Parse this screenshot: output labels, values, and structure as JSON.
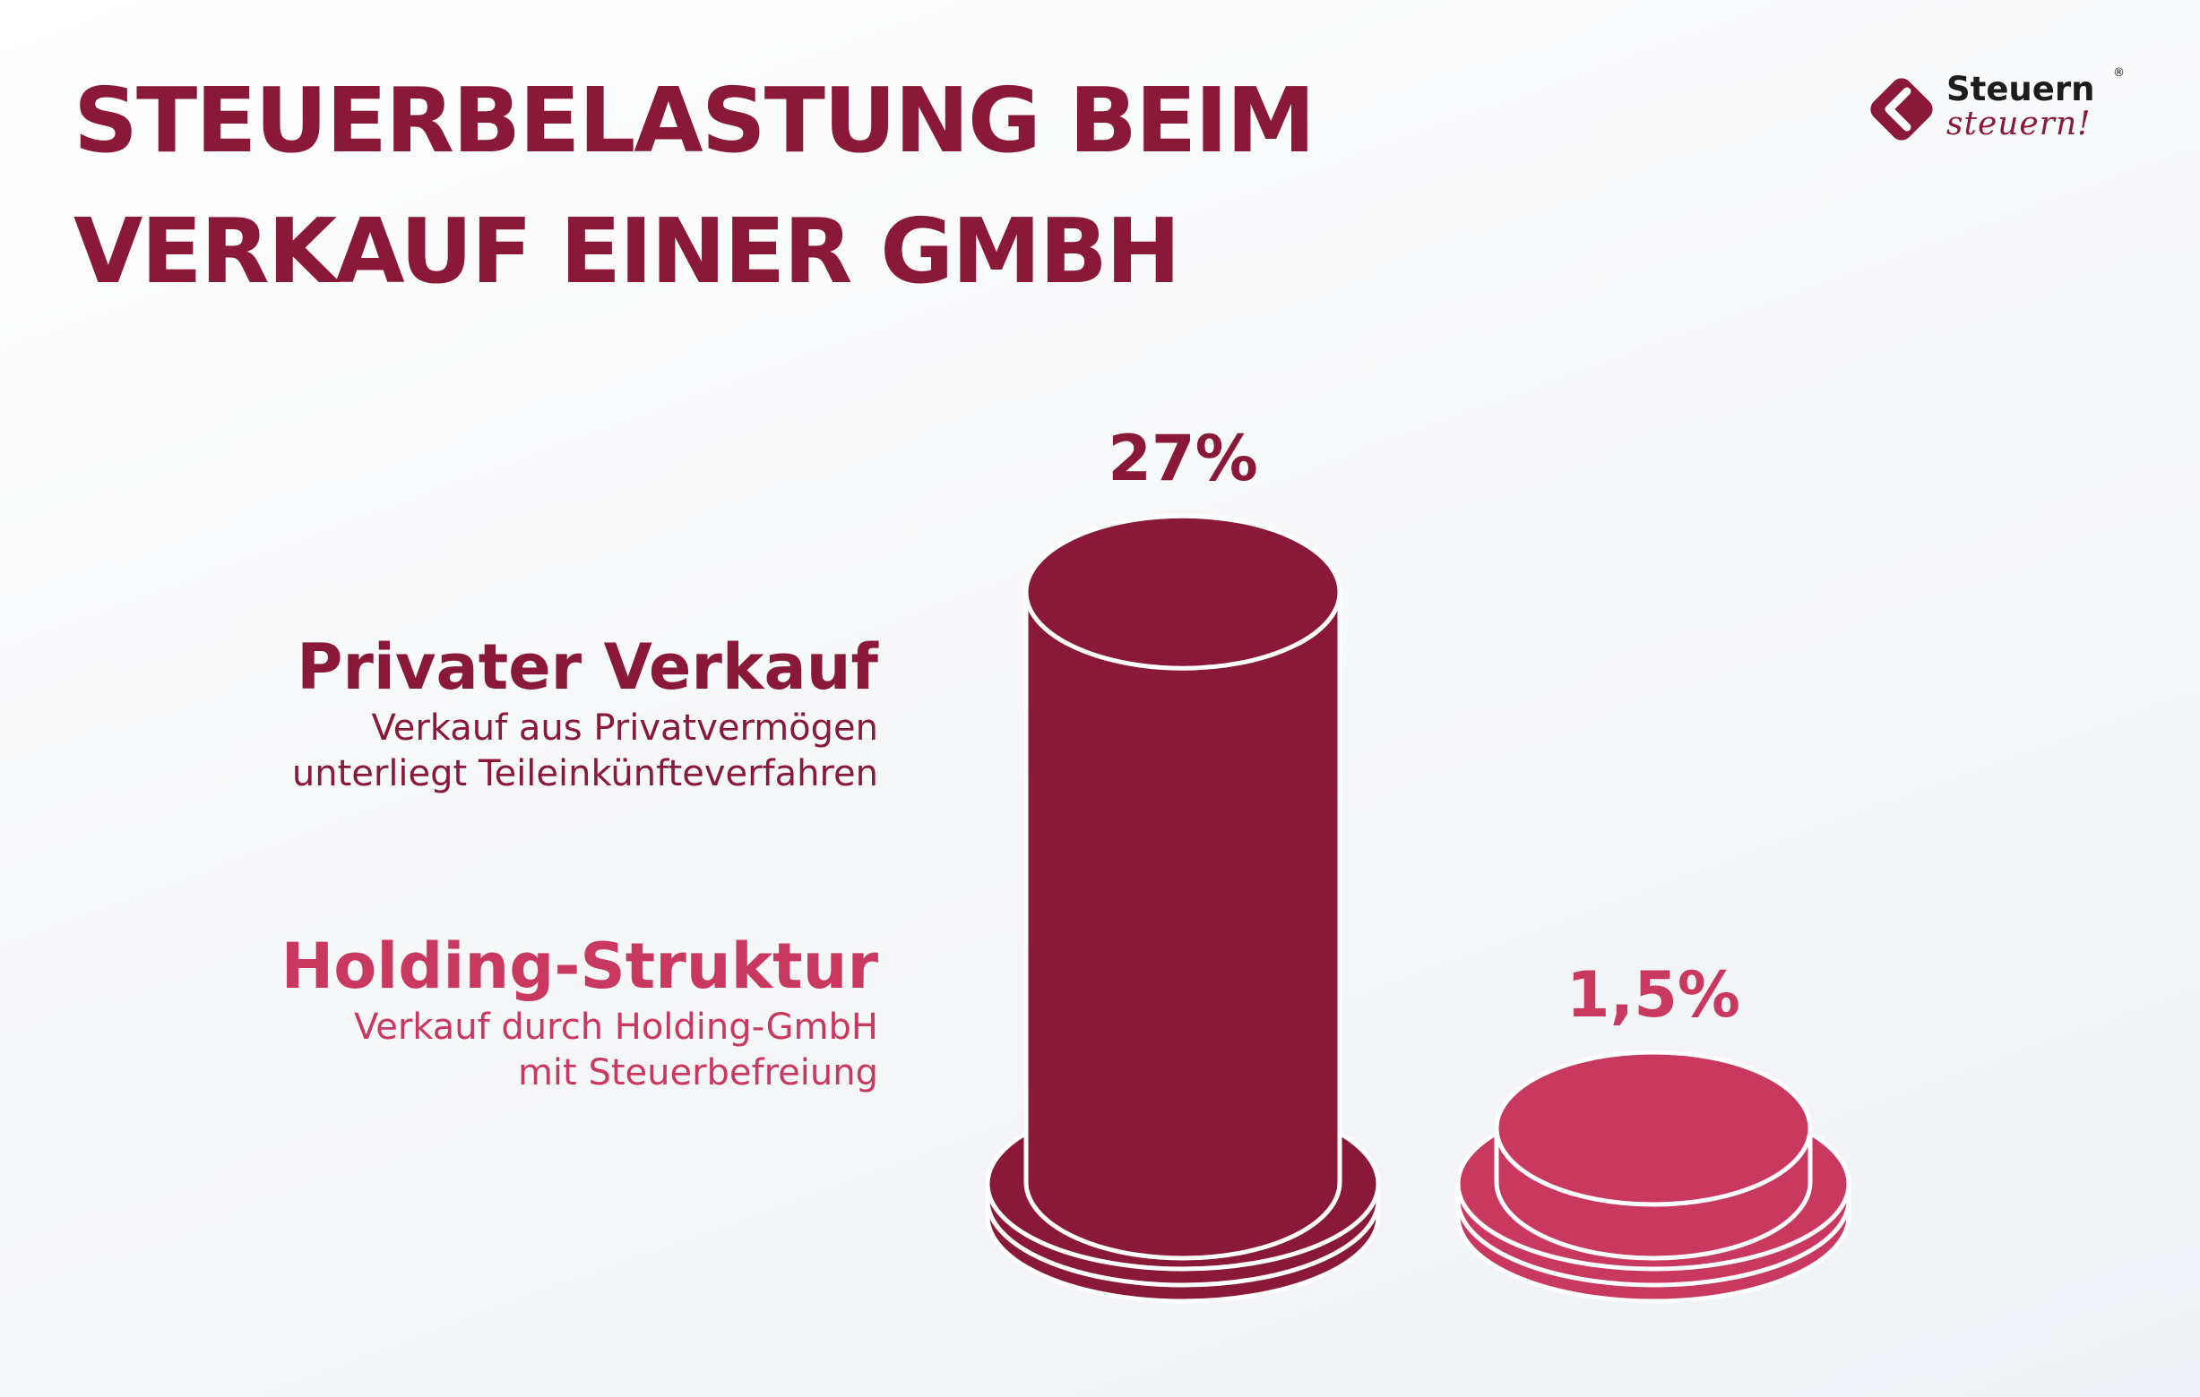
{
  "title_lines": [
    "STEUERBELASTUNG BEIM",
    "VERKAUF EINER GMBH"
  ],
  "logo": {
    "word1": "Steuern",
    "registered": "®",
    "word2": "steuern!",
    "icon": "diamond-arrow-icon"
  },
  "colors": {
    "primary": "#8a1838",
    "secondary": "#c8385f",
    "outline": "#ffffff"
  },
  "chart_data": {
    "type": "bar",
    "categories": [
      "Privater Verkauf",
      "Holding-Struktur"
    ],
    "values": [
      27,
      1.5
    ],
    "data_labels": [
      "27%",
      "1,5%"
    ],
    "descriptions": [
      [
        "Verkauf aus Privatvermögen",
        "unterliegt Teileinkünfteverfahren"
      ],
      [
        "Verkauf durch Holding-GmbH",
        "mit Steuerbefreiung"
      ]
    ],
    "unit": "%",
    "title": "STEUERBELASTUNG BEIM VERKAUF EINER GMBH",
    "xlabel": "",
    "ylabel": "",
    "grid": false,
    "legend_position": "left"
  }
}
